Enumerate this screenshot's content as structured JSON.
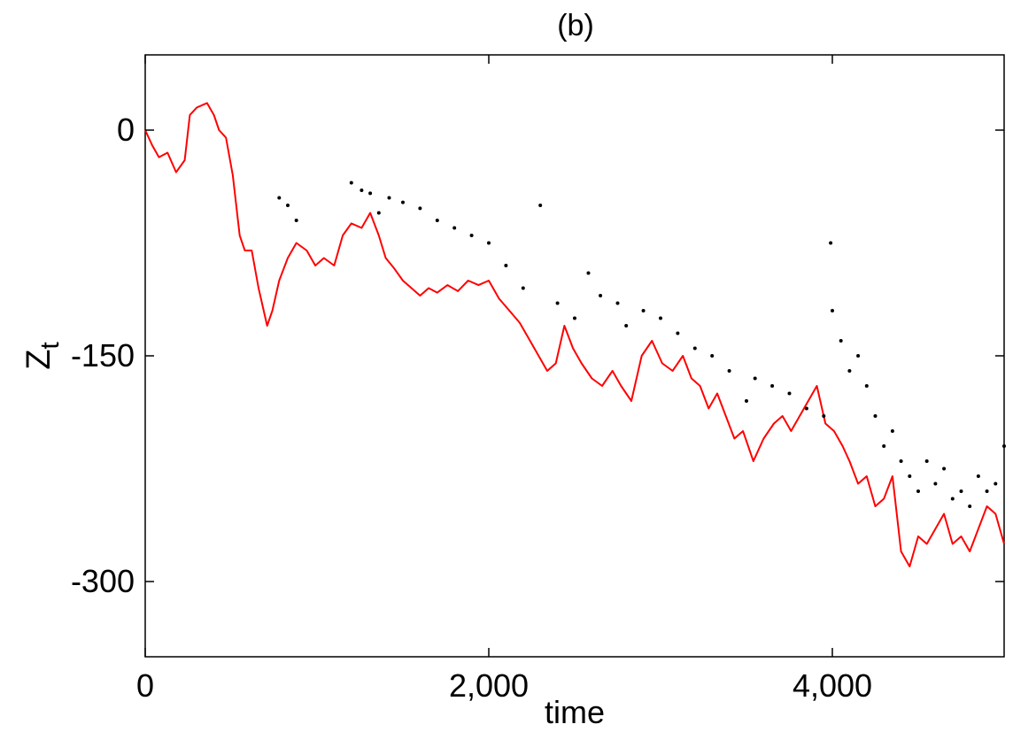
{
  "chart_data": {
    "type": "line",
    "title": "(b)",
    "xlabel": "time",
    "ylabel": "Z",
    "ylabel_subscript": "t",
    "xlim": [
      0,
      5000
    ],
    "ylim": [
      -350,
      50
    ],
    "x_ticks": [
      0,
      2000,
      4000
    ],
    "x_tick_labels": [
      "0",
      "2,000",
      "4,000"
    ],
    "y_ticks": [
      0,
      -150,
      -300
    ],
    "y_tick_labels": [
      "0",
      "-150",
      "-300"
    ],
    "grid": false,
    "legend": "none",
    "colors": {
      "line": "#ff0000",
      "dots": "#000000",
      "axes": "#000000"
    },
    "series": [
      {
        "style": "line",
        "color": "#ff0000",
        "x": [
          0,
          40,
          80,
          130,
          180,
          230,
          260,
          300,
          360,
          400,
          430,
          470,
          510,
          550,
          580,
          620,
          660,
          710,
          740,
          780,
          830,
          880,
          940,
          990,
          1040,
          1100,
          1150,
          1200,
          1260,
          1310,
          1360,
          1400,
          1450,
          1500,
          1550,
          1600,
          1650,
          1700,
          1760,
          1820,
          1880,
          1940,
          2000,
          2060,
          2120,
          2180,
          2240,
          2290,
          2340,
          2390,
          2440,
          2490,
          2540,
          2600,
          2660,
          2720,
          2770,
          2830,
          2890,
          2950,
          3010,
          3070,
          3130,
          3180,
          3230,
          3280,
          3330,
          3380,
          3430,
          3480,
          3540,
          3600,
          3660,
          3710,
          3760,
          3810,
          3860,
          3910,
          3960,
          4010,
          4060,
          4100,
          4150,
          4200,
          4250,
          4300,
          4350,
          4400,
          4450,
          4500,
          4550,
          4600,
          4650,
          4700,
          4750,
          4800,
          4850,
          4900,
          4950,
          5000
        ],
        "y": [
          0,
          -10,
          -18,
          -15,
          -28,
          -20,
          10,
          15,
          18,
          10,
          0,
          -5,
          -30,
          -70,
          -80,
          -80,
          -105,
          -130,
          -120,
          -100,
          -85,
          -75,
          -80,
          -90,
          -85,
          -90,
          -70,
          -62,
          -65,
          -55,
          -70,
          -85,
          -92,
          -100,
          -105,
          -110,
          -105,
          -108,
          -103,
          -107,
          -100,
          -103,
          -100,
          -112,
          -120,
          -128,
          -140,
          -150,
          -160,
          -155,
          -130,
          -145,
          -155,
          -165,
          -170,
          -160,
          -170,
          -180,
          -150,
          -140,
          -155,
          -160,
          -150,
          -165,
          -170,
          -185,
          -175,
          -190,
          -205,
          -200,
          -220,
          -205,
          -195,
          -190,
          -200,
          -190,
          -180,
          -170,
          -195,
          -200,
          -210,
          -220,
          -235,
          -230,
          -250,
          -245,
          -230,
          -280,
          -290,
          -270,
          -275,
          -265,
          -255,
          -275,
          -270,
          -280,
          -265,
          -250,
          -255,
          -275
        ]
      },
      {
        "style": "dots",
        "color": "#000000",
        "x": [
          780,
          830,
          880,
          1200,
          1260,
          1310,
          1360,
          1420,
          1500,
          1600,
          1700,
          1800,
          1900,
          2000,
          2100,
          2200,
          2300,
          2400,
          2500,
          2580,
          2650,
          2750,
          2800,
          2900,
          3000,
          3100,
          3200,
          3300,
          3400,
          3500,
          3550,
          3650,
          3750,
          3850,
          3950,
          3990,
          4000,
          4050,
          4100,
          4150,
          4200,
          4250,
          4300,
          4350,
          4400,
          4450,
          4500,
          4550,
          4600,
          4650,
          4700,
          4750,
          4800,
          4850,
          4900,
          4950,
          5000
        ],
        "y": [
          -45,
          -50,
          -60,
          -35,
          -40,
          -42,
          -55,
          -45,
          -48,
          -52,
          -60,
          -65,
          -70,
          -75,
          -90,
          -105,
          -50,
          -115,
          -125,
          -95,
          -110,
          -115,
          -130,
          -120,
          -125,
          -135,
          -145,
          -150,
          -160,
          -180,
          -165,
          -170,
          -175,
          -185,
          -190,
          -75,
          -120,
          -140,
          -160,
          -150,
          -170,
          -190,
          -210,
          -200,
          -220,
          -230,
          -240,
          -220,
          -235,
          -225,
          -245,
          -240,
          -250,
          -230,
          -240,
          -235,
          -210
        ]
      }
    ]
  }
}
